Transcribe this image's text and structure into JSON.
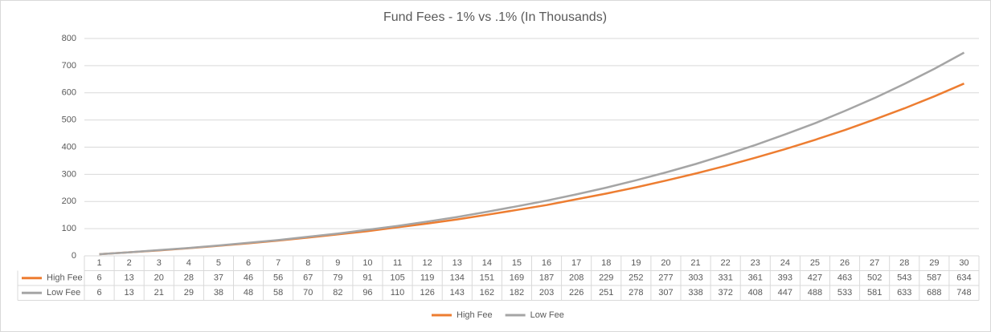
{
  "chart_data": {
    "type": "line",
    "title": "Fund Fees - 1% vs .1% (In Thousands)",
    "categories": [
      1,
      2,
      3,
      4,
      5,
      6,
      7,
      8,
      9,
      10,
      11,
      12,
      13,
      14,
      15,
      16,
      17,
      18,
      19,
      20,
      21,
      22,
      23,
      24,
      25,
      26,
      27,
      28,
      29,
      30
    ],
    "series": [
      {
        "name": "High Fee",
        "color": "#ed7d31",
        "values": [
          6,
          13,
          20,
          28,
          37,
          46,
          56,
          67,
          79,
          91,
          105,
          119,
          134,
          151,
          169,
          187,
          208,
          229,
          252,
          277,
          303,
          331,
          361,
          393,
          427,
          463,
          502,
          543,
          587,
          634
        ]
      },
      {
        "name": "Low Fee",
        "color": "#a5a5a5",
        "values": [
          6,
          13,
          21,
          29,
          38,
          48,
          58,
          70,
          82,
          96,
          110,
          126,
          143,
          162,
          182,
          203,
          226,
          251,
          278,
          307,
          338,
          372,
          408,
          447,
          488,
          533,
          581,
          633,
          688,
          748
        ]
      }
    ],
    "ylim": [
      0,
      800
    ],
    "yticks": [
      0,
      100,
      200,
      300,
      400,
      500,
      600,
      700,
      800
    ],
    "grid": true
  }
}
